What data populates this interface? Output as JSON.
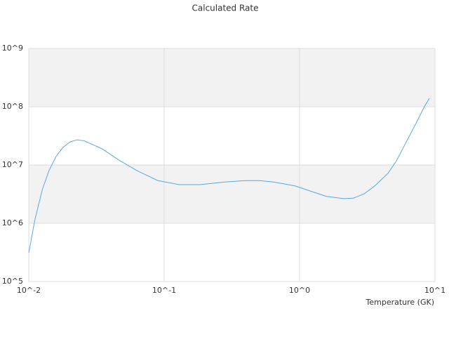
{
  "chart_data": {
    "type": "line",
    "title": "Calculated Rate",
    "x_label": "Temperature (GK)",
    "x": [
      0.01,
      0.0111,
      0.0126,
      0.0141,
      0.0159,
      0.0179,
      0.0202,
      0.0228,
      0.0257,
      0.0289,
      0.0347,
      0.0467,
      0.063,
      0.0898,
      0.129,
      0.184,
      0.279,
      0.4,
      0.507,
      0.64,
      0.92,
      1.57,
      2.12,
      2.5,
      3.0,
      3.6,
      4.5,
      5.2,
      6.2,
      7.4,
      8.35,
      9.1
    ],
    "series": [
      {
        "color": "#5aa6e6",
        "values": [
          310000,
          1150000,
          3800000,
          8000000,
          14000000,
          20000000,
          25000000,
          27000000,
          26000000,
          23000000,
          19000000,
          12000000,
          8000000,
          5400000,
          4600000,
          4600000,
          5100000,
          5400000,
          5400000,
          5100000,
          4400000,
          2900000,
          2650000,
          2700000,
          3200000,
          4400000,
          7200000,
          11800000,
          26000000,
          57000000,
          100000000,
          140000000
        ]
      }
    ],
    "xscale": "log",
    "yscale": "log",
    "xlim": [
      0.01,
      10
    ],
    "ylim": [
      100000,
      1000000000
    ],
    "xticks": [
      {
        "value": 0.01,
        "label": "10^-2"
      },
      {
        "value": 0.1,
        "label": "10^-1"
      },
      {
        "value": 1,
        "label": "10^0"
      },
      {
        "value": 10,
        "label": "10^1"
      }
    ],
    "yticks": [
      {
        "value": 100000,
        "label": "10^5"
      },
      {
        "value": 1000000,
        "label": "10^6"
      },
      {
        "value": 10000000,
        "label": "10^7"
      },
      {
        "value": 100000000,
        "label": "10^8"
      },
      {
        "value": 1000000000,
        "label": "10^9"
      }
    ],
    "grid": true,
    "band_color": "#f2f2f2"
  }
}
